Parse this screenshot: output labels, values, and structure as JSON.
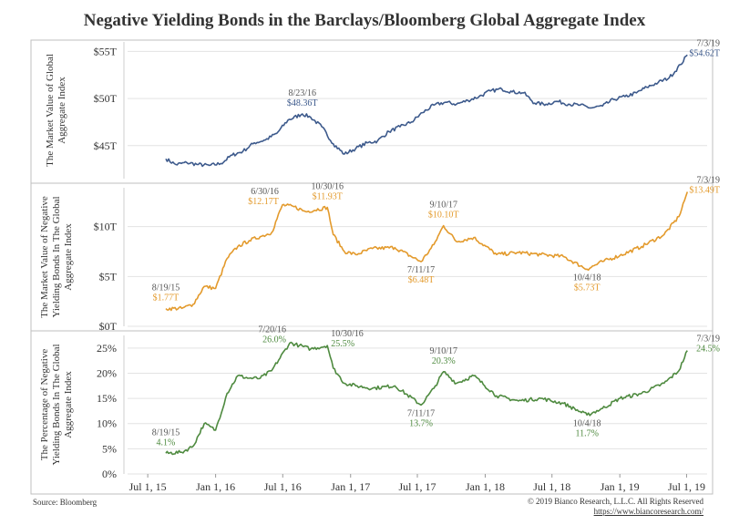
{
  "title": "Negative Yielding Bonds in the Barclays/Bloomberg Global Aggregate Index",
  "source": "Source: Bloomberg",
  "copyright": "© 2019 Bianco Research, L.L.C. All Rights Reserved",
  "url": "https://www.biancoresearch.com/",
  "colors": {
    "panel1": "#3d5a8c",
    "panel2": "#e39a2c",
    "panel3": "#4e8a3f",
    "grid": "#e3e3e3"
  },
  "chart_data": [
    {
      "type": "line",
      "ylabel": [
        "The Market Value of Global",
        "Aggregate Index"
      ],
      "yticks": [
        {
          "v": 45,
          "label": "$45T"
        },
        {
          "v": 50,
          "label": "$50T"
        },
        {
          "v": 55,
          "label": "$55T"
        }
      ],
      "ylim": [
        41.5,
        56
      ],
      "color": "#3d5a8c",
      "series": [
        [
          "2015-08-19",
          43.6
        ],
        [
          "2015-09-15",
          43.0
        ],
        [
          "2015-10-15",
          43.2
        ],
        [
          "2015-11-15",
          43.0
        ],
        [
          "2015-12-15",
          42.9
        ],
        [
          "2016-01-15",
          43.1
        ],
        [
          "2016-02-15",
          44.0
        ],
        [
          "2016-03-15",
          44.4
        ],
        [
          "2016-04-15",
          45.3
        ],
        [
          "2016-05-15",
          45.6
        ],
        [
          "2016-06-15",
          46.3
        ],
        [
          "2016-07-15",
          47.7
        ],
        [
          "2016-08-23",
          48.36
        ],
        [
          "2016-09-15",
          48.0
        ],
        [
          "2016-10-15",
          47.0
        ],
        [
          "2016-11-15",
          45.2
        ],
        [
          "2016-12-15",
          44.1
        ],
        [
          "2017-01-15",
          44.7
        ],
        [
          "2017-02-15",
          45.3
        ],
        [
          "2017-03-15",
          45.5
        ],
        [
          "2017-04-15",
          46.5
        ],
        [
          "2017-05-15",
          47.0
        ],
        [
          "2017-06-15",
          47.5
        ],
        [
          "2017-07-15",
          48.5
        ],
        [
          "2017-08-15",
          49.3
        ],
        [
          "2017-09-15",
          49.6
        ],
        [
          "2017-10-15",
          49.4
        ],
        [
          "2017-11-15",
          49.8
        ],
        [
          "2017-12-15",
          50.2
        ],
        [
          "2018-01-15",
          50.8
        ],
        [
          "2018-02-15",
          51.0
        ],
        [
          "2018-03-15",
          50.7
        ],
        [
          "2018-04-15",
          50.6
        ],
        [
          "2018-05-15",
          49.5
        ],
        [
          "2018-06-15",
          49.4
        ],
        [
          "2018-07-15",
          49.7
        ],
        [
          "2018-08-15",
          49.4
        ],
        [
          "2018-09-15",
          49.3
        ],
        [
          "2018-10-15",
          49.0
        ],
        [
          "2018-11-15",
          49.2
        ],
        [
          "2018-12-15",
          49.9
        ],
        [
          "2019-01-15",
          50.2
        ],
        [
          "2019-02-15",
          50.6
        ],
        [
          "2019-03-15",
          51.2
        ],
        [
          "2019-04-15",
          51.7
        ],
        [
          "2019-05-15",
          52.2
        ],
        [
          "2019-06-15",
          53.6
        ],
        [
          "2019-07-03",
          54.62
        ]
      ],
      "annotations": [
        {
          "date": "2016-08-23",
          "value": 48.36,
          "lines": [
            "8/23/16",
            "$48.36T"
          ],
          "pos": "above"
        },
        {
          "date": "2019-07-03",
          "value": 54.62,
          "lines": [
            "7/3/19",
            "$54.62T"
          ],
          "pos": "right"
        }
      ]
    },
    {
      "type": "line",
      "ylabel": [
        "The Market Value of Negative",
        "Yielding Bonds In The Global",
        "Aggregate Index"
      ],
      "yticks": [
        {
          "v": 0,
          "label": "$0T"
        },
        {
          "v": 5,
          "label": "$5T"
        },
        {
          "v": 10,
          "label": "$10T"
        }
      ],
      "ylim": [
        0,
        13.9
      ],
      "color": "#e39a2c",
      "series": [
        [
          "2015-08-19",
          1.77
        ],
        [
          "2015-10-01",
          1.8
        ],
        [
          "2015-11-01",
          2.2
        ],
        [
          "2015-12-01",
          4.0
        ],
        [
          "2016-01-01",
          3.8
        ],
        [
          "2016-02-01",
          6.8
        ],
        [
          "2016-03-01",
          8.0
        ],
        [
          "2016-04-01",
          8.6
        ],
        [
          "2016-05-01",
          9.0
        ],
        [
          "2016-06-01",
          9.4
        ],
        [
          "2016-06-30",
          12.17
        ],
        [
          "2016-08-01",
          12.0
        ],
        [
          "2016-09-01",
          11.5
        ],
        [
          "2016-10-30",
          11.93
        ],
        [
          "2016-11-15",
          9.2
        ],
        [
          "2016-12-15",
          7.5
        ],
        [
          "2017-01-15",
          7.2
        ],
        [
          "2017-03-01",
          7.8
        ],
        [
          "2017-05-01",
          7.9
        ],
        [
          "2017-07-11",
          6.48
        ],
        [
          "2017-08-15",
          8.2
        ],
        [
          "2017-09-10",
          10.1
        ],
        [
          "2017-10-15",
          8.5
        ],
        [
          "2017-12-01",
          8.9
        ],
        [
          "2018-02-01",
          7.2
        ],
        [
          "2018-04-01",
          7.4
        ],
        [
          "2018-06-01",
          7.2
        ],
        [
          "2018-08-01",
          7.0
        ],
        [
          "2018-10-04",
          5.73
        ],
        [
          "2018-11-15",
          6.5
        ],
        [
          "2019-01-01",
          7.1
        ],
        [
          "2019-03-01",
          8.0
        ],
        [
          "2019-05-01",
          9.2
        ],
        [
          "2019-06-10",
          11.0
        ],
        [
          "2019-07-03",
          13.49
        ]
      ],
      "annotations": [
        {
          "date": "2015-08-19",
          "value": 1.77,
          "lines": [
            "8/19/15",
            "$1.77T"
          ],
          "pos": "above"
        },
        {
          "date": "2016-06-30",
          "value": 12.17,
          "lines": [
            "6/30/16",
            "$12.17T"
          ],
          "pos": "left"
        },
        {
          "date": "2016-10-30",
          "value": 11.93,
          "lines": [
            "10/30/16",
            "$11.93T"
          ],
          "pos": "above"
        },
        {
          "date": "2017-07-11",
          "value": 6.48,
          "lines": [
            "7/11/17",
            "$6.48T"
          ],
          "pos": "below"
        },
        {
          "date": "2017-09-10",
          "value": 10.1,
          "lines": [
            "9/10/17",
            "$10.10T"
          ],
          "pos": "above"
        },
        {
          "date": "2018-10-04",
          "value": 5.73,
          "lines": [
            "10/4/18",
            "$5.73T"
          ],
          "pos": "below"
        },
        {
          "date": "2019-07-03",
          "value": 13.49,
          "lines": [
            "7/3/19",
            "$13.49T"
          ],
          "pos": "right"
        }
      ]
    },
    {
      "type": "line",
      "ylabel": [
        "The Percentage of Negative",
        "Yielding Bonds In The Global",
        "Aggregate Index"
      ],
      "yticks": [
        {
          "v": 0,
          "label": "0%"
        },
        {
          "v": 5,
          "label": "5%"
        },
        {
          "v": 10,
          "label": "10%"
        },
        {
          "v": 15,
          "label": "15%"
        },
        {
          "v": 20,
          "label": "20%"
        },
        {
          "v": 25,
          "label": "25%"
        }
      ],
      "ylim": [
        0,
        27.5
      ],
      "color": "#4e8a3f",
      "series": [
        [
          "2015-08-19",
          4.1
        ],
        [
          "2015-10-01",
          4.3
        ],
        [
          "2015-11-01",
          5.5
        ],
        [
          "2015-12-01",
          10.0
        ],
        [
          "2016-01-01",
          8.7
        ],
        [
          "2016-02-01",
          16.0
        ],
        [
          "2016-03-01",
          19.5
        ],
        [
          "2016-04-01",
          19.0
        ],
        [
          "2016-05-01",
          19.0
        ],
        [
          "2016-06-01",
          20.5
        ],
        [
          "2016-07-20",
          26.0
        ],
        [
          "2016-08-15",
          25.5
        ],
        [
          "2016-09-15",
          24.8
        ],
        [
          "2016-10-30",
          25.5
        ],
        [
          "2016-11-15",
          21.0
        ],
        [
          "2016-12-15",
          18.0
        ],
        [
          "2017-01-15",
          17.5
        ],
        [
          "2017-03-01",
          17.0
        ],
        [
          "2017-05-01",
          17.5
        ],
        [
          "2017-07-11",
          13.7
        ],
        [
          "2017-08-15",
          17.0
        ],
        [
          "2017-09-10",
          20.3
        ],
        [
          "2017-10-15",
          18.0
        ],
        [
          "2017-12-01",
          19.5
        ],
        [
          "2018-02-01",
          15.5
        ],
        [
          "2018-04-01",
          14.5
        ],
        [
          "2018-06-01",
          15.0
        ],
        [
          "2018-08-01",
          14.0
        ],
        [
          "2018-10-04",
          11.7
        ],
        [
          "2018-11-15",
          13.0
        ],
        [
          "2019-01-01",
          15.0
        ],
        [
          "2019-03-01",
          16.0
        ],
        [
          "2019-05-01",
          18.0
        ],
        [
          "2019-06-10",
          20.5
        ],
        [
          "2019-07-03",
          24.5
        ]
      ],
      "annotations": [
        {
          "date": "2015-08-19",
          "value": 4.1,
          "lines": [
            "8/19/15",
            "4.1%"
          ],
          "pos": "above"
        },
        {
          "date": "2016-07-20",
          "value": 26.0,
          "lines": [
            "7/20/16",
            "26.0%"
          ],
          "pos": "left"
        },
        {
          "date": "2016-10-30",
          "value": 25.5,
          "lines": [
            "10/30/16",
            "25.5%"
          ],
          "pos": "right"
        },
        {
          "date": "2017-07-11",
          "value": 13.7,
          "lines": [
            "7/11/17",
            "13.7%"
          ],
          "pos": "below"
        },
        {
          "date": "2017-09-10",
          "value": 20.3,
          "lines": [
            "9/10/17",
            "20.3%"
          ],
          "pos": "above"
        },
        {
          "date": "2018-10-04",
          "value": 11.7,
          "lines": [
            "10/4/18",
            "11.7%"
          ],
          "pos": "below"
        },
        {
          "date": "2019-07-03",
          "value": 24.5,
          "lines": [
            "7/3/19",
            "24.5%"
          ],
          "pos": "right"
        }
      ]
    }
  ],
  "x_axis": {
    "range": [
      "2015-06-01",
      "2019-08-01"
    ],
    "ticks": [
      {
        "date": "2015-07-01",
        "label": "Jul 1, 15"
      },
      {
        "date": "2016-01-01",
        "label": "Jan 1, 16"
      },
      {
        "date": "2016-07-01",
        "label": "Jul 1, 16"
      },
      {
        "date": "2017-01-01",
        "label": "Jan 1, 17"
      },
      {
        "date": "2017-07-01",
        "label": "Jul 1, 17"
      },
      {
        "date": "2018-01-01",
        "label": "Jan 1, 18"
      },
      {
        "date": "2018-07-01",
        "label": "Jul 1, 18"
      },
      {
        "date": "2019-01-01",
        "label": "Jan 1, 19"
      },
      {
        "date": "2019-07-01",
        "label": "Jul 1, 19"
      }
    ]
  }
}
